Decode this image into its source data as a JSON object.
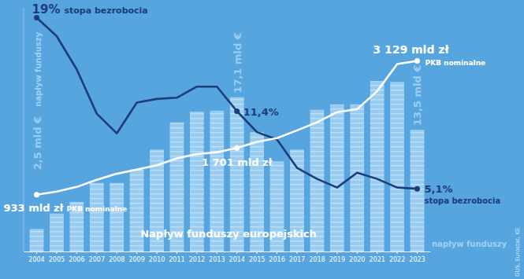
{
  "chart_data": [
    {
      "type": "bar",
      "title": "Napływ funduszy europejskich",
      "categories": [
        "2004",
        "2005",
        "2006",
        "2007",
        "2008",
        "2009",
        "2010",
        "2011",
        "2012",
        "2013",
        "2014",
        "2015",
        "2016",
        "2017",
        "2018",
        "2019",
        "2020",
        "2021",
        "2022",
        "2023"
      ],
      "series": [
        {
          "name": "napływ funduszy",
          "color": "#9fd0f3",
          "values": [
            2.5,
            4.2,
            5.5,
            7.6,
            7.6,
            9.1,
            11.3,
            14.3,
            15.5,
            15.6,
            17.1,
            13.2,
            10.0,
            11.3,
            15.7,
            16.3,
            16.3,
            18.9,
            18.8,
            13.5
          ],
          "value_labels": [
            "2,5 mld €",
            null,
            null,
            null,
            null,
            null,
            null,
            null,
            null,
            null,
            "17,1 mld €",
            null,
            null,
            null,
            null,
            null,
            null,
            null,
            null,
            "13,5 mld €"
          ]
        }
      ],
      "ylim": [
        0,
        27
      ],
      "data_labels": true,
      "tick_labels": "x",
      "annotations": [
        "GUS, Eurostat, KE"
      ]
    },
    {
      "type": "line",
      "categories": [
        "2004",
        "2005",
        "2006",
        "2007",
        "2008",
        "2009",
        "2010",
        "2011",
        "2012",
        "2013",
        "2014",
        "2015",
        "2016",
        "2017",
        "2018",
        "2019",
        "2020",
        "2021",
        "2022",
        "2023"
      ],
      "series": [
        {
          "name": "stopa bezrobocia",
          "color": "#1f3c7a",
          "values": [
            19,
            17.5,
            14.8,
            11.2,
            9.6,
            12.1,
            12.4,
            12.5,
            13.4,
            13.4,
            11.4,
            9.7,
            9.1,
            6.8,
            5.9,
            5.2,
            6.4,
            5.9,
            5.2,
            5.1
          ],
          "value_labels": [
            "19%",
            null,
            null,
            null,
            null,
            null,
            null,
            null,
            null,
            null,
            "11,4%",
            null,
            null,
            null,
            null,
            null,
            null,
            null,
            null,
            "5,1%"
          ]
        }
      ],
      "ylim": [
        0,
        19.8
      ],
      "data_labels": true,
      "tick_labels": false
    },
    {
      "type": "line",
      "categories": [
        "2004",
        "2005",
        "2006",
        "2007",
        "2008",
        "2009",
        "2010",
        "2011",
        "2012",
        "2013",
        "2014",
        "2015",
        "2016",
        "2017",
        "2018",
        "2019",
        "2020",
        "2021",
        "2022",
        "2023"
      ],
      "series": [
        {
          "name": "PKB nominalne",
          "color": "#ffffff",
          "values": [
            933,
            983,
            1060,
            1177,
            1276,
            1345,
            1417,
            1528,
            1600,
            1630,
            1701,
            1800,
            1861,
            1989,
            2121,
            2288,
            2337,
            2631,
            3078,
            3129
          ],
          "value_labels": [
            "933 mld zł",
            null,
            null,
            null,
            null,
            null,
            null,
            null,
            null,
            null,
            "1 701 mld zł",
            null,
            null,
            null,
            null,
            null,
            null,
            null,
            null,
            "3 129 mld zł"
          ]
        }
      ],
      "ylim": [
        0,
        4000
      ],
      "data_labels": true,
      "tick_labels": false
    }
  ]
}
